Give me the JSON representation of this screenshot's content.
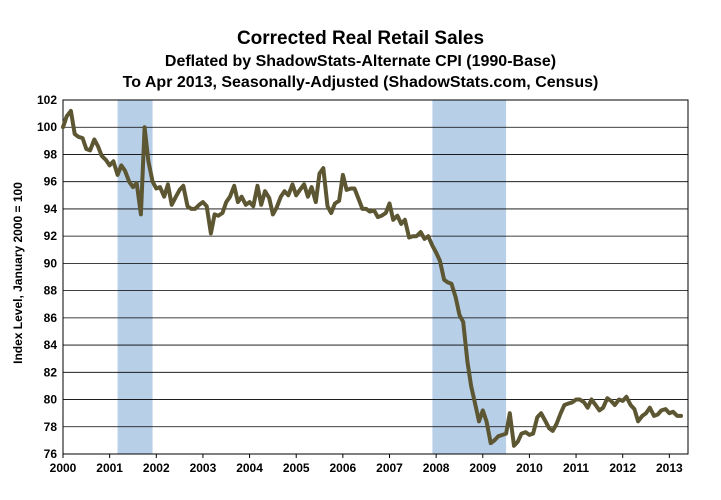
{
  "chart_data": {
    "type": "line",
    "title": "Corrected Real Retail Sales",
    "subtitle_1": "Deflated by ShadowStats-Alternate CPI (1990-Base)",
    "subtitle_2": "To Apr 2013, Seasonally-Adjusted (ShadowStats.com, Census)",
    "xlabel": "",
    "ylabel": "Index Level, January 2000 = 100",
    "xlim": [
      2000,
      2013.4
    ],
    "ylim": [
      76,
      102
    ],
    "x_ticks": [
      "2000",
      "2001",
      "2002",
      "2003",
      "2004",
      "2005",
      "2006",
      "2007",
      "2008",
      "2009",
      "2010",
      "2011",
      "2012",
      "2013"
    ],
    "y_ticks": [
      "76",
      "78",
      "80",
      "82",
      "84",
      "86",
      "88",
      "90",
      "92",
      "94",
      "96",
      "98",
      "100",
      "102"
    ],
    "grid": true,
    "line_color": "#5c5632",
    "recession_color": "#b8cfe8",
    "recessions": [
      [
        2001.17,
        2001.92
      ],
      [
        2007.92,
        2009.5
      ]
    ],
    "series": [
      {
        "x": [
          2000.0,
          2000.08,
          2000.17,
          2000.25,
          2000.33,
          2000.42,
          2000.5,
          2000.58,
          2000.67,
          2000.75,
          2000.83,
          2000.92,
          2001.0,
          2001.08,
          2001.17,
          2001.25,
          2001.33,
          2001.42,
          2001.5,
          2001.58,
          2001.67,
          2001.75,
          2001.83,
          2001.92,
          2002.0,
          2002.08,
          2002.17,
          2002.25,
          2002.33,
          2002.42,
          2002.5,
          2002.58,
          2002.67,
          2002.75,
          2002.83,
          2002.92,
          2003.0,
          2003.08,
          2003.17,
          2003.25,
          2003.33,
          2003.42,
          2003.5,
          2003.58,
          2003.67,
          2003.75,
          2003.83,
          2003.92,
          2004.0,
          2004.08,
          2004.17,
          2004.25,
          2004.33,
          2004.42,
          2004.5,
          2004.58,
          2004.67,
          2004.75,
          2004.83,
          2004.92,
          2005.0,
          2005.08,
          2005.17,
          2005.25,
          2005.33,
          2005.42,
          2005.5,
          2005.58,
          2005.67,
          2005.75,
          2005.83,
          2005.92,
          2006.0,
          2006.08,
          2006.17,
          2006.25,
          2006.33,
          2006.42,
          2006.5,
          2006.58,
          2006.67,
          2006.75,
          2006.83,
          2006.92,
          2007.0,
          2007.08,
          2007.17,
          2007.25,
          2007.33,
          2007.42,
          2007.5,
          2007.58,
          2007.67,
          2007.75,
          2007.83,
          2007.92,
          2008.0,
          2008.08,
          2008.17,
          2008.25,
          2008.33,
          2008.42,
          2008.5,
          2008.58,
          2008.67,
          2008.75,
          2008.83,
          2008.92,
          2009.0,
          2009.08,
          2009.17,
          2009.25,
          2009.33,
          2009.42,
          2009.5,
          2009.58,
          2009.67,
          2009.75,
          2009.83,
          2009.92,
          2010.0,
          2010.08,
          2010.17,
          2010.25,
          2010.33,
          2010.42,
          2010.5,
          2010.58,
          2010.67,
          2010.75,
          2010.83,
          2010.92,
          2011.0,
          2011.08,
          2011.17,
          2011.25,
          2011.33,
          2011.42,
          2011.5,
          2011.58,
          2011.67,
          2011.75,
          2011.83,
          2011.92,
          2012.0,
          2012.08,
          2012.17,
          2012.25,
          2012.33,
          2012.42,
          2012.5,
          2012.58,
          2012.67,
          2012.75,
          2012.83,
          2012.92,
          2013.0,
          2013.08,
          2013.17,
          2013.25
        ],
        "values": [
          100.0,
          100.8,
          101.2,
          99.5,
          99.3,
          99.2,
          98.4,
          98.3,
          99.1,
          98.6,
          97.9,
          97.6,
          97.2,
          97.5,
          96.5,
          97.2,
          96.8,
          96.0,
          95.6,
          95.9,
          93.6,
          100.0,
          97.5,
          96.0,
          95.5,
          95.6,
          94.9,
          95.8,
          94.3,
          94.9,
          95.4,
          95.7,
          94.2,
          94.0,
          94.0,
          94.3,
          94.5,
          94.2,
          92.2,
          93.6,
          93.5,
          93.7,
          94.5,
          94.9,
          95.7,
          94.5,
          94.9,
          94.3,
          94.5,
          94.2,
          95.7,
          94.3,
          95.3,
          94.8,
          93.6,
          94.1,
          94.9,
          95.3,
          95.0,
          95.8,
          95.0,
          95.4,
          95.8,
          94.9,
          95.6,
          94.5,
          96.6,
          97.0,
          94.2,
          93.7,
          94.4,
          94.6,
          96.5,
          95.4,
          95.5,
          95.5,
          94.8,
          94.0,
          94.0,
          93.8,
          93.9,
          93.4,
          93.5,
          93.7,
          94.4,
          93.2,
          93.5,
          92.9,
          93.2,
          91.9,
          92.0,
          92.0,
          92.3,
          91.8,
          92.0,
          91.3,
          90.8,
          90.2,
          88.8,
          88.6,
          88.5,
          87.5,
          86.2,
          85.7,
          82.8,
          81.0,
          79.8,
          78.4,
          79.2,
          78.4,
          76.8,
          77.0,
          77.3,
          77.4,
          77.5,
          79.0,
          76.6,
          76.9,
          77.5,
          77.6,
          77.4,
          77.5,
          78.7,
          79.0,
          78.5,
          77.9,
          77.7,
          78.2,
          79.0,
          79.6,
          79.7,
          79.8,
          80.0,
          80.0,
          79.8,
          79.4,
          80.0,
          79.6,
          79.2,
          79.4,
          80.1,
          79.9,
          79.6,
          80.0,
          79.9,
          80.2,
          79.6,
          79.3,
          78.4,
          78.8,
          79.0,
          79.4,
          78.8,
          78.9,
          79.2,
          79.3,
          79.0,
          79.1,
          78.8,
          78.8
        ]
      }
    ]
  }
}
